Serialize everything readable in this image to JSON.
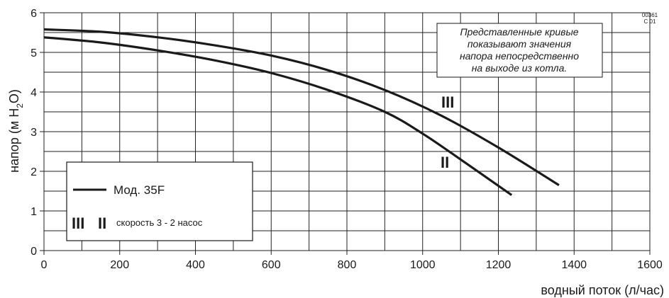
{
  "chart_data": {
    "type": "line",
    "xlabel": "водный поток (л/час)",
    "ylabel_parts": [
      "напор (м H",
      "2",
      "O)"
    ],
    "xlim": [
      0,
      1600
    ],
    "ylim": [
      0,
      6
    ],
    "x_ticks": [
      0,
      200,
      400,
      600,
      800,
      1000,
      1200,
      1400,
      1600
    ],
    "y_ticks": [
      0,
      1,
      2,
      3,
      4,
      5,
      6
    ],
    "grid": true,
    "series": [
      {
        "name": "III",
        "x": [
          0,
          150,
          300,
          450,
          600,
          750,
          900,
          1050,
          1200,
          1360
        ],
        "y": [
          5.58,
          5.52,
          5.38,
          5.18,
          4.92,
          4.55,
          4.05,
          3.4,
          2.6,
          1.65
        ]
      },
      {
        "name": "II",
        "x": [
          0,
          150,
          300,
          450,
          600,
          750,
          900,
          1000,
          1100,
          1235
        ],
        "y": [
          5.38,
          5.25,
          5.05,
          4.8,
          4.48,
          4.05,
          3.5,
          2.95,
          2.3,
          1.4
        ]
      }
    ],
    "annotation_lines": [
      "Представленные кривые",
      "показывают  значения",
      "напора непосредственно",
      "на выходе из котла."
    ],
    "code_lines": [
      "00361",
      "C 01"
    ],
    "legend": {
      "model": "Мод. 35F",
      "speed_marks_1": "III",
      "speed_marks_2": "II",
      "speed_text": "скорость 3 - 2 насос",
      "placement": "bottom-left"
    }
  }
}
